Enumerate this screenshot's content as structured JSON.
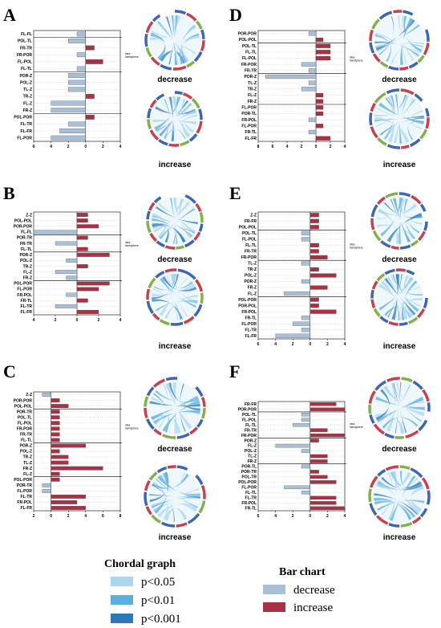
{
  "colors": {
    "decrease": "#a9bfd8",
    "increase": "#a83245",
    "p005": "#aad6f0",
    "p001": "#5aaee0",
    "p0001": "#2f78b8",
    "ring_blue": "#3a66b5",
    "ring_red": "#c8404f",
    "ring_green": "#7fb24a"
  },
  "chart_data": [
    {
      "panel": "A",
      "type": "bar",
      "orientation": "horizontal",
      "categories": [
        "FL-FL",
        "POL-TL",
        "FR-TR",
        "FR-POR",
        "FL-POL",
        "FL-TL",
        "POR-Z",
        "POL-Z",
        "TL-Z",
        "TR-Z",
        "FL-Z",
        "FR-Z",
        "POL-POR",
        "FL-TR",
        "FL-FR",
        "FL-POR"
      ],
      "values": [
        -1,
        -2,
        1,
        -1,
        2,
        -1,
        -2,
        -2,
        -2,
        1,
        -4,
        -4,
        1,
        -2,
        -3,
        -4
      ],
      "group_breaks": [
        1,
        6,
        12
      ],
      "side_label": "intra-\nhemisphere",
      "side_label_group": 1,
      "xlim": [
        -6,
        4
      ],
      "xticks": [
        "6",
        "4",
        "2",
        "0",
        "2",
        "4"
      ],
      "chord_titles": [
        "decrease",
        "increase"
      ]
    },
    {
      "panel": "B",
      "type": "bar",
      "orientation": "horizontal",
      "categories": [
        "Z-Z",
        "POL-POL",
        "POR-POR",
        "FL-FL",
        "POR-TR",
        "FR-TR",
        "FL-TL",
        "POR-Z",
        "POL-Z",
        "TR-Z",
        "FL-Z",
        "FR-Z",
        "POL-POR",
        "FL-POR",
        "FR-POL",
        "FR-TL",
        "FL-TR",
        "FL-FR"
      ],
      "values": [
        1,
        1,
        2,
        -4,
        1,
        -2,
        1,
        3,
        -1,
        1,
        -2,
        -1,
        3,
        2,
        -1,
        1,
        -2,
        2
      ],
      "group_breaks": [
        4,
        7,
        12
      ],
      "side_label": "intra-\nhemisphere",
      "side_label_group": 1,
      "xlim": [
        -4,
        4
      ],
      "xticks": [
        "4",
        "2",
        "0",
        "2",
        "4"
      ],
      "chord_titles": [
        "decrease",
        "increase"
      ]
    },
    {
      "panel": "C",
      "type": "bar",
      "orientation": "horizontal",
      "categories": [
        "Z-Z",
        "POR-POR",
        "POL-POL",
        "POR-TR",
        "POL-TL",
        "FL-POL",
        "FR-POR",
        "FR-TR",
        "FL-TL",
        "POR-Z",
        "POL-Z",
        "TR-Z",
        "TL-Z",
        "FR-Z",
        "FL-Z",
        "POL-POR",
        "POR-TR",
        "FL-POR",
        "FL-TR",
        "FR-POL",
        "FL-FR"
      ],
      "values": [
        -1,
        1,
        2,
        1,
        1,
        1,
        1,
        1,
        1,
        4,
        1,
        2,
        2,
        6,
        1,
        1,
        -1,
        -1,
        4,
        3,
        4
      ],
      "group_breaks": [
        3,
        9,
        15
      ],
      "side_label": "intra-\nhemisphere",
      "side_label_group": 1,
      "xlim": [
        -2,
        8
      ],
      "xticks": [
        "2",
        "0",
        "2",
        "4",
        "6",
        "8"
      ],
      "chord_titles": [
        "decrease",
        "increase"
      ]
    },
    {
      "panel": "D",
      "type": "bar",
      "orientation": "horizontal",
      "categories": [
        "POR-POR",
        "POL-POL",
        "POL-TL",
        "FL-TL",
        "FL-POL",
        "FR-POR",
        "FR-TR",
        "POR-Z",
        "TL-Z",
        "TR-Z",
        "FL-Z",
        "FR-Z",
        "FL-POR",
        "POR-TL",
        "FR-POL",
        "FL-POR",
        "FR-TL",
        "FL-FR"
      ],
      "values": [
        -1,
        1,
        2,
        2,
        2,
        -2,
        -1,
        -7,
        -1,
        -2,
        1,
        1,
        1,
        1,
        -1,
        1,
        -1,
        2
      ],
      "group_breaks": [
        2,
        7,
        12
      ],
      "side_label": "intra-\nhemisphere",
      "side_label_group": 1,
      "xlim": [
        -8,
        4
      ],
      "xticks": [
        "8",
        "6",
        "4",
        "2",
        "0",
        "2",
        "4"
      ],
      "chord_titles": [
        "decrease",
        "increase"
      ]
    },
    {
      "panel": "E",
      "type": "bar",
      "orientation": "horizontal",
      "categories": [
        "Z-Z",
        "FR-FR",
        "POL-POL",
        "POL-TL",
        "FL-POL",
        "FL-TL",
        "FR-TR",
        "FR-POR",
        "TL-Z",
        "TR-Z",
        "POL-Z",
        "POR-Z",
        "FR-Z",
        "FL-Z",
        "POL-POR",
        "POR-POL",
        "FR-POL",
        "FR-TL",
        "FL-POR",
        "FL-TR",
        "FL-FR"
      ],
      "values": [
        1,
        1,
        1,
        -1,
        -1,
        1,
        1,
        2,
        -1,
        1,
        3,
        -1,
        2,
        -3,
        1,
        1,
        3,
        -1,
        -2,
        -1,
        -4
      ],
      "group_breaks": [
        3,
        8,
        14
      ],
      "side_label": "intra-\nhemisphere",
      "side_label_group": 1,
      "xlim": [
        -6,
        4
      ],
      "xticks": [
        "6",
        "4",
        "2",
        "0",
        "2",
        "4"
      ],
      "chord_titles": [
        "decrease",
        "increase"
      ]
    },
    {
      "panel": "F",
      "type": "bar",
      "orientation": "horizontal",
      "categories": [
        "FR-FR",
        "POR-POR",
        "POL-TL",
        "FL-POL",
        "FL-TL",
        "FR-TR",
        "FR-POR",
        "POR-Z",
        "FL-Z",
        "POL-Z",
        "TL-Z",
        "FR-Z",
        "POR-TL",
        "POR-TR",
        "POL-TR",
        "POL-POR",
        "FL-POR",
        "FL-TL",
        "FL-TR",
        "FR-POL",
        "FR-TL"
      ],
      "values": [
        3,
        4,
        -1,
        -1,
        -2,
        2,
        4,
        1,
        -4,
        -1,
        2,
        2,
        -1,
        1,
        2,
        3,
        -3,
        -1,
        3,
        3,
        4
      ],
      "group_breaks": [
        2,
        7,
        12
      ],
      "side_label": "intra-\nhemisphere",
      "side_label_group": 1,
      "xlim": [
        -6,
        4
      ],
      "xticks": [
        "6",
        "4",
        "2",
        "0",
        "2",
        "4"
      ],
      "chord_titles": [
        "decrease",
        "increase"
      ]
    }
  ],
  "legend": {
    "chord_title": "Chordal graph",
    "chord_items": [
      "p<0.05",
      "p<0.01",
      "p<0.001"
    ],
    "bar_title": "Bar chart",
    "bar_items": [
      "decrease",
      "increase"
    ]
  }
}
